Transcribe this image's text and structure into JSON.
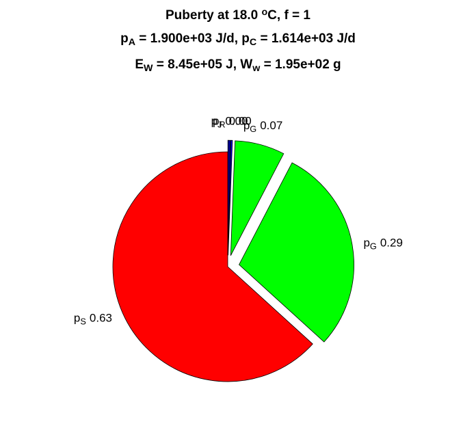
{
  "chart_data": {
    "type": "pie",
    "title": [
      [
        {
          "t": "Puberty at 18.0 "
        },
        {
          "sup": "o"
        },
        {
          "t": "C, f = 1"
        }
      ],
      [
        {
          "t": "p"
        },
        {
          "sub": "A"
        },
        {
          "t": " = 1.900e+03 J/d,  p"
        },
        {
          "sub": "C"
        },
        {
          "t": " = 1.614e+03 J/d"
        }
      ],
      [
        {
          "t": "E"
        },
        {
          "sub": "W"
        },
        {
          "t": " = 8.45e+05 J, W"
        },
        {
          "sub": "w"
        },
        {
          "t": " = 1.95e+02 g"
        }
      ]
    ],
    "categories": [
      {
        "t": "p",
        "sub": "J"
      },
      {
        "t": "p",
        "sub": "R"
      },
      {
        "t": "p",
        "sub": "G"
      },
      {
        "t": "p",
        "sub": "G"
      },
      {
        "t": "p",
        "sub": "S"
      }
    ],
    "values": [
      0.004,
      0.002,
      0.07,
      0.29,
      0.63
    ],
    "value_labels": [
      "0.00",
      "0.00",
      "0.07",
      "0.29",
      "0.63"
    ],
    "colors": [
      "#00008b",
      "#0000ff",
      "#00ff00",
      "#00ff00",
      "#ff0000"
    ],
    "explode": [
      true,
      true,
      true,
      true,
      false
    ]
  }
}
